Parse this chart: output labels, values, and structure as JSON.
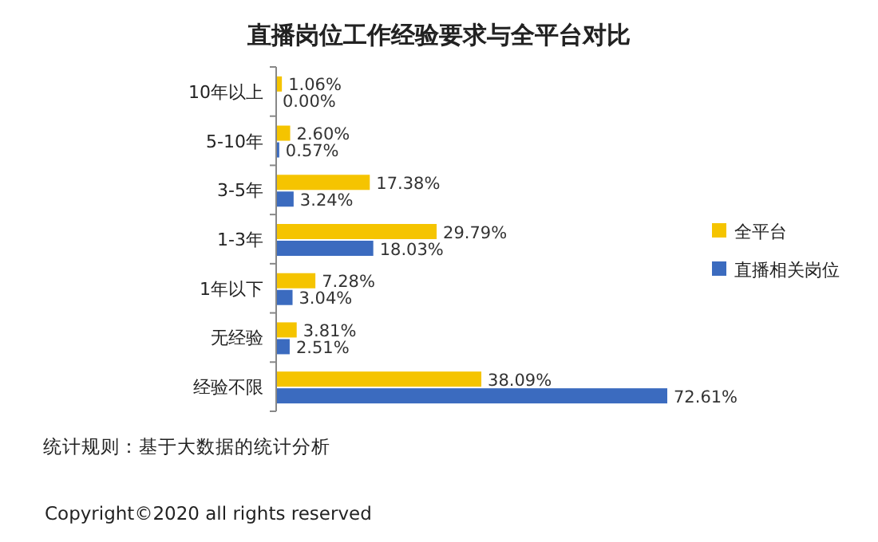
{
  "chart_data": {
    "type": "bar",
    "orientation": "horizontal",
    "title": "直播岗位工作经验要求与全平台对比",
    "categories": [
      "10年以上",
      "5-10年",
      "3-5年",
      "1-3年",
      "1年以下",
      "无经验",
      "经验不限"
    ],
    "series": [
      {
        "name": "全平台",
        "color": "#f5c400",
        "values": [
          1.06,
          2.6,
          17.38,
          29.79,
          7.28,
          3.81,
          38.09
        ],
        "value_labels": [
          "1.06%",
          "2.60%",
          "17.38%",
          "29.79%",
          "7.28%",
          "3.81%",
          "38.09%"
        ]
      },
      {
        "name": "直播相关岗位",
        "color": "#3b6bbf",
        "values": [
          0.0,
          0.57,
          3.24,
          18.03,
          3.04,
          2.51,
          72.61
        ],
        "value_labels": [
          "0.00%",
          "0.57%",
          "3.24%",
          "18.03%",
          "3.04%",
          "2.51%",
          "72.61%"
        ]
      }
    ],
    "legend": "right",
    "annotations": [
      "统计规则：基于大数据的统计分析",
      "Copyright©2020 all rights reserved"
    ]
  }
}
